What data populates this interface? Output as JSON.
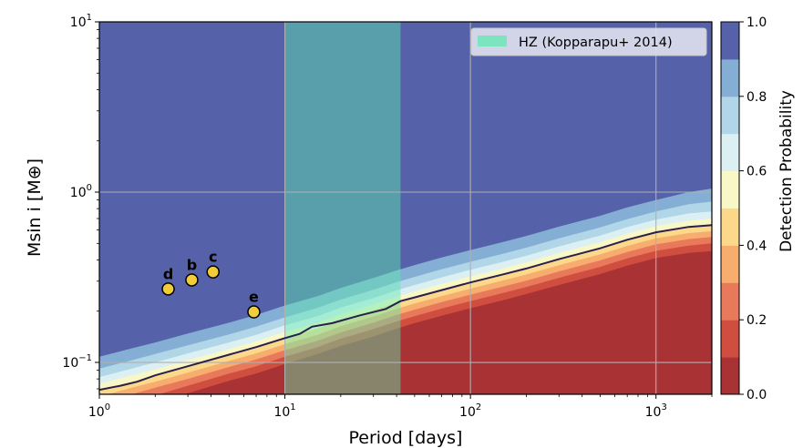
{
  "chart_data": {
    "type": "heatmap",
    "title": "",
    "xlabel": "Period [days]",
    "ylabel": "Msin i [M⊕]",
    "xscale": "log",
    "yscale": "log",
    "xlim": [
      1,
      2000
    ],
    "ylim": [
      0.065,
      10
    ],
    "grid": true,
    "x_ticks": [
      {
        "value": 1,
        "base": "10",
        "exp": "0"
      },
      {
        "value": 10,
        "base": "10",
        "exp": "1"
      },
      {
        "value": 100,
        "base": "10",
        "exp": "2"
      },
      {
        "value": 1000,
        "base": "10",
        "exp": "3"
      }
    ],
    "y_ticks": [
      {
        "value": 0.1,
        "base": "10",
        "exp": "−1"
      },
      {
        "value": 1,
        "base": "10",
        "exp": "0"
      },
      {
        "value": 10,
        "base": "10",
        "exp": "1"
      }
    ],
    "colorbar": {
      "label": "Detection Probability",
      "range": [
        0,
        1
      ],
      "ticks": [
        "0.0",
        "0.2",
        "0.4",
        "0.6",
        "0.8",
        "1.0"
      ],
      "levels": [
        0,
        0.1,
        0.2,
        0.3,
        0.4,
        0.5,
        0.6,
        0.7,
        0.8,
        0.9,
        1.0
      ],
      "colors": [
        "#a83234",
        "#cf4e3f",
        "#e8795a",
        "#f6ad6d",
        "#fbd88a",
        "#f9f7c6",
        "#dcf0f3",
        "#b1d6e8",
        "#85aed4",
        "#5d7fbd"
      ],
      "top_color": "#5561a8"
    },
    "detection_contours": {
      "x": [
        1,
        1.5,
        2,
        3,
        5,
        7,
        10,
        15,
        20,
        30,
        40,
        50,
        70,
        100,
        150,
        200,
        300,
        500,
        700,
        1000,
        1500,
        2000
      ],
      "levels": [
        0.1,
        0.2,
        0.3,
        0.4,
        0.5,
        0.6,
        0.7,
        0.8,
        0.9
      ],
      "y": [
        [
          0.047,
          0.053,
          0.058,
          0.066,
          0.078,
          0.086,
          0.098,
          0.112,
          0.125,
          0.142,
          0.158,
          0.17,
          0.188,
          0.208,
          0.232,
          0.252,
          0.285,
          0.33,
          0.37,
          0.41,
          0.44,
          0.45
        ],
        [
          0.053,
          0.059,
          0.064,
          0.073,
          0.086,
          0.095,
          0.108,
          0.123,
          0.138,
          0.157,
          0.174,
          0.187,
          0.207,
          0.229,
          0.256,
          0.277,
          0.314,
          0.364,
          0.408,
          0.452,
          0.485,
          0.5
        ],
        [
          0.058,
          0.065,
          0.071,
          0.08,
          0.094,
          0.104,
          0.118,
          0.134,
          0.15,
          0.171,
          0.19,
          0.204,
          0.226,
          0.25,
          0.279,
          0.302,
          0.342,
          0.397,
          0.445,
          0.493,
          0.53,
          0.545
        ],
        [
          0.063,
          0.071,
          0.077,
          0.087,
          0.102,
          0.113,
          0.128,
          0.145,
          0.163,
          0.186,
          0.206,
          0.222,
          0.245,
          0.271,
          0.303,
          0.328,
          0.372,
          0.431,
          0.483,
          0.535,
          0.575,
          0.59
        ],
        [
          0.069,
          0.077,
          0.084,
          0.095,
          0.111,
          0.123,
          0.139,
          0.158,
          0.177,
          0.202,
          0.224,
          0.241,
          0.266,
          0.295,
          0.329,
          0.356,
          0.404,
          0.468,
          0.525,
          0.581,
          0.625,
          0.64
        ],
        [
          0.075,
          0.084,
          0.091,
          0.103,
          0.12,
          0.133,
          0.151,
          0.171,
          0.192,
          0.219,
          0.243,
          0.261,
          0.289,
          0.32,
          0.357,
          0.387,
          0.439,
          0.508,
          0.57,
          0.631,
          0.68,
          0.7
        ],
        [
          0.082,
          0.092,
          0.1,
          0.113,
          0.131,
          0.145,
          0.165,
          0.187,
          0.21,
          0.239,
          0.265,
          0.285,
          0.316,
          0.35,
          0.39,
          0.423,
          0.48,
          0.555,
          0.623,
          0.69,
          0.75,
          0.77
        ],
        [
          0.092,
          0.103,
          0.112,
          0.126,
          0.146,
          0.162,
          0.184,
          0.209,
          0.234,
          0.267,
          0.296,
          0.318,
          0.353,
          0.39,
          0.435,
          0.472,
          0.535,
          0.62,
          0.695,
          0.77,
          0.85,
          0.88
        ],
        [
          0.108,
          0.121,
          0.131,
          0.148,
          0.171,
          0.19,
          0.216,
          0.245,
          0.274,
          0.313,
          0.347,
          0.373,
          0.413,
          0.457,
          0.51,
          0.553,
          0.627,
          0.726,
          0.814,
          0.9,
          1.0,
          1.05
        ]
      ]
    },
    "contour_50_line": {
      "x": [
        1,
        1.3,
        1.6,
        2,
        3,
        5,
        7,
        10,
        12,
        14,
        18,
        25,
        35,
        42,
        50,
        70,
        100,
        150,
        200,
        300,
        500,
        700,
        1000,
        1500,
        2000
      ],
      "y": [
        0.069,
        0.073,
        0.077,
        0.084,
        0.095,
        0.111,
        0.123,
        0.139,
        0.147,
        0.162,
        0.17,
        0.188,
        0.206,
        0.229,
        0.241,
        0.266,
        0.295,
        0.329,
        0.356,
        0.404,
        0.468,
        0.525,
        0.581,
        0.625,
        0.64
      ]
    },
    "hz_band": {
      "x_start": 10,
      "x_end": 42,
      "label": "HZ (Kopparapu+ 2014)",
      "color": "#5fe8b0"
    },
    "planets": [
      {
        "name": "d",
        "period": 2.35,
        "msini": 0.27
      },
      {
        "name": "b",
        "period": 3.15,
        "msini": 0.305
      },
      {
        "name": "c",
        "period": 4.1,
        "msini": 0.34
      },
      {
        "name": "e",
        "period": 6.8,
        "msini": 0.198
      }
    ],
    "planet_color": "#f2cd3a",
    "legend_position": "top-right"
  }
}
